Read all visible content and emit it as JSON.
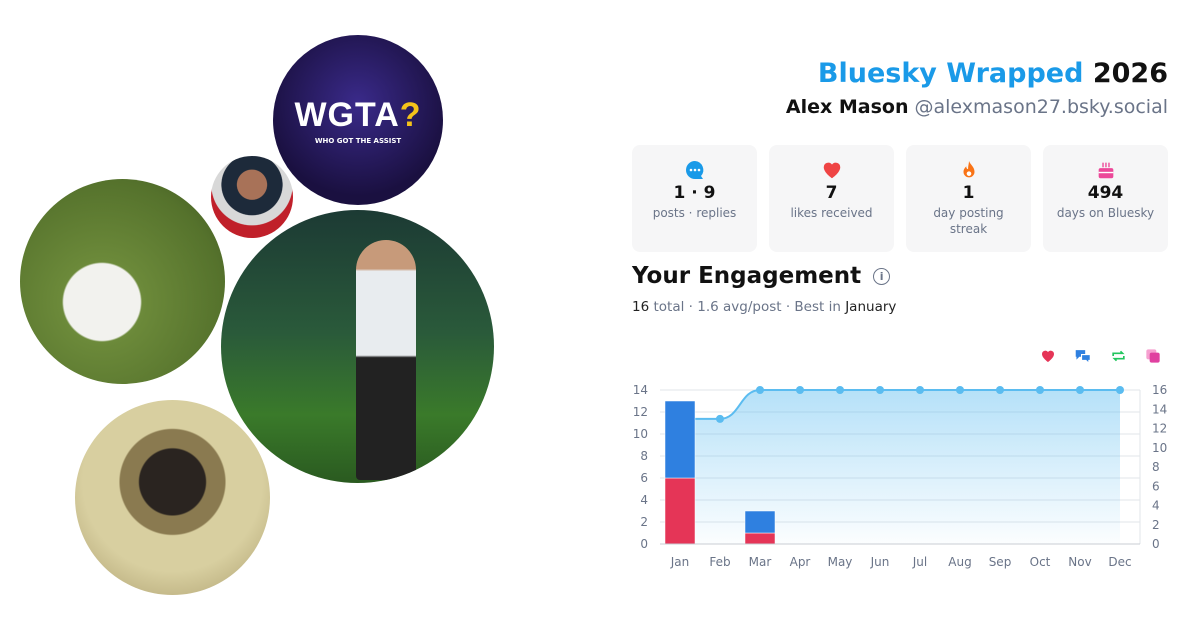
{
  "header": {
    "brand": "Bluesky Wrapped",
    "year": "2026",
    "name": "Alex Mason",
    "handle": "@alexmason27.bsky.social"
  },
  "photos": [
    {
      "name": "wgta-logo",
      "logo_text": "WGTA",
      "logo_mark": "?",
      "logo_sub": "WHO GOT THE ASSIST"
    },
    {
      "name": "football-player"
    },
    {
      "name": "swan"
    },
    {
      "name": "trophy-celebration"
    },
    {
      "name": "monkey"
    }
  ],
  "stats": [
    {
      "icon": "chat-bubble-icon",
      "icon_color": "#1a9ae8",
      "value": "1 · 9",
      "label": "posts · replies"
    },
    {
      "icon": "heart-icon",
      "icon_color": "#ef4444",
      "value": "7",
      "label": "likes received"
    },
    {
      "icon": "fire-icon",
      "icon_color": "#f97316",
      "value": "1",
      "label": "day posting streak"
    },
    {
      "icon": "cake-icon",
      "icon_color": "#ec4899",
      "value": "494",
      "label": "days on Bluesky"
    }
  ],
  "engagement": {
    "title": "Your Engagement",
    "total": "16",
    "total_label": "total",
    "avg": "1.6 avg/post",
    "best_label": "Best in",
    "best_month": "January"
  },
  "legend": [
    {
      "icon": "heart-icon",
      "color": "#e53557"
    },
    {
      "icon": "replies-icon",
      "color": "#2f80e0"
    },
    {
      "icon": "repost-icon",
      "color": "#22c55e"
    },
    {
      "icon": "quote-icon",
      "color": "#e040a0"
    }
  ],
  "chart_data": {
    "type": "bar",
    "categories": [
      "Jan",
      "Feb",
      "Mar",
      "Apr",
      "May",
      "Jun",
      "Jul",
      "Aug",
      "Sep",
      "Oct",
      "Nov",
      "Dec"
    ],
    "series": [
      {
        "values": [
          6,
          0,
          1,
          0,
          0,
          0,
          0,
          0,
          0,
          0,
          0,
          0
        ],
        "color": "#e53557",
        "stack": true
      },
      {
        "values": [
          7,
          0,
          2,
          0,
          0,
          0,
          0,
          0,
          0,
          0,
          0,
          0
        ],
        "color": "#2f80e0",
        "stack": true
      },
      {
        "type": "area",
        "axis": "right",
        "values": [
          13,
          13,
          16,
          16,
          16,
          16,
          16,
          16,
          16,
          16,
          16,
          16
        ],
        "color": "#5bbcf0"
      }
    ],
    "ylim": [
      0,
      14
    ],
    "yticks": [
      0,
      2,
      4,
      6,
      8,
      10,
      12,
      14
    ],
    "y2lim": [
      0,
      16
    ],
    "y2ticks": [
      0,
      2,
      4,
      6,
      8,
      10,
      12,
      14,
      16
    ],
    "grid": true
  }
}
